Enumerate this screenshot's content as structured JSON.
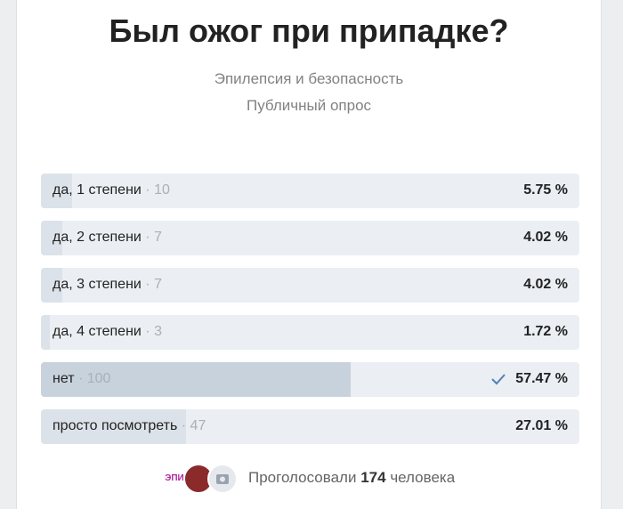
{
  "poll": {
    "title": "Был ожог при припадке?",
    "subtitle": "Эпилепсия и безопасность",
    "poll_type": "Публичный опрос",
    "options": [
      {
        "label": "да, 1 степени",
        "count": 10,
        "percent": 5.75,
        "percent_label": "5.75 %"
      },
      {
        "label": "да, 2 степени",
        "count": 7,
        "percent": 4.02,
        "percent_label": "4.02 %"
      },
      {
        "label": "да, 3 степени",
        "count": 7,
        "percent": 4.02,
        "percent_label": "4.02 %"
      },
      {
        "label": "да, 4 степени",
        "count": 3,
        "percent": 1.72,
        "percent_label": "1.72 %"
      },
      {
        "label": "нет",
        "count": 100,
        "percent": 57.47,
        "percent_label": "57.47 %",
        "selected": true
      },
      {
        "label": "просто посмотреть",
        "count": 47,
        "percent": 27.01,
        "percent_label": "27.01 %"
      }
    ],
    "footer": {
      "avatar_text": "ЭПИ",
      "voted_prefix": "Проголосовали",
      "voted_count": 174,
      "voted_suffix": "человека"
    }
  }
}
